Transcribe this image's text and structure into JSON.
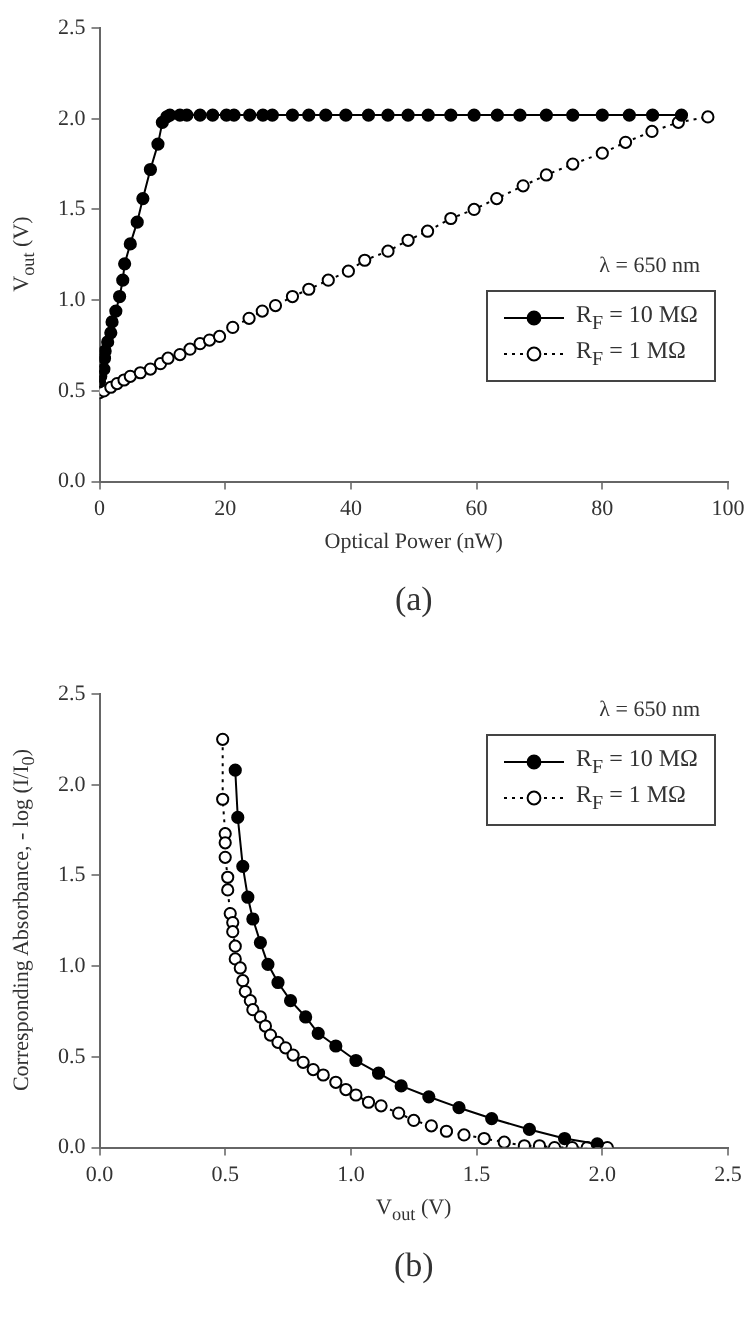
{
  "chart_data": [
    {
      "type": "line",
      "xlabel": "Optical Power (nW)",
      "ylabel": "V$_{out}$ (V)",
      "annotations": [
        "λ = 650 nm",
        "(a)"
      ],
      "marker": "circle",
      "legend": "bottom right",
      "grid": false,
      "xlim": [
        0,
        100
      ],
      "xticks": [
        0,
        20,
        40,
        60,
        80,
        100
      ],
      "ylim": [
        0,
        2.5
      ],
      "yticks": [
        {
          "value": 0,
          "label": "0.0"
        },
        {
          "value": 0.5,
          "label": "0.5"
        },
        {
          "value": 1,
          "label": "1.0"
        },
        {
          "value": 1.5,
          "label": "1.5"
        },
        {
          "value": 2,
          "label": "2.0"
        },
        {
          "value": 2.5,
          "label": "2.5"
        }
      ],
      "series": [
        {
          "name": "R$_{F}$ = 10 MΩ",
          "color": "#000000",
          "line_style": "solid",
          "x": [
            0,
            0.2,
            0.7,
            0.8,
            0.9,
            1.3,
            1.8,
            2.0,
            2.6,
            3.2,
            3.7,
            4.0,
            4.9,
            6.0,
            6.9,
            8.1,
            9.3,
            10.0,
            10.7,
            11.2,
            12.8,
            13.9,
            16,
            18,
            20.2,
            21.4,
            23.9,
            26,
            27.5,
            30.7,
            33.3,
            36,
            39.2,
            42.8,
            45.9,
            49.1,
            52.3,
            55.9,
            59.6,
            63.3,
            66.9,
            71.1,
            75.3,
            80,
            84.3,
            88,
            92.6
          ],
          "values": [
            0.55,
            0.58,
            0.62,
            0.68,
            0.72,
            0.77,
            0.82,
            0.88,
            0.94,
            1.02,
            1.11,
            1.2,
            1.31,
            1.43,
            1.56,
            1.72,
            1.86,
            1.98,
            2.01,
            2.02,
            2.02,
            2.02,
            2.02,
            2.02,
            2.02,
            2.02,
            2.02,
            2.02,
            2.02,
            2.02,
            2.02,
            2.02,
            2.02,
            2.02,
            2.02,
            2.02,
            2.02,
            2.02,
            2.02,
            2.02,
            2.02,
            2.02,
            2.02,
            2.02,
            2.02,
            2.02,
            2.02
          ]
        },
        {
          "name": "R$_{F}$ = 1 MΩ",
          "color": "#000000",
          "line_style": "dotted",
          "x": [
            0,
            0.7,
            1.8,
            2.8,
            3.9,
            4.9,
            6.5,
            8.1,
            9.7,
            10.9,
            12.8,
            14.4,
            16.0,
            17.5,
            19.1,
            21.2,
            23.8,
            25.9,
            28.0,
            30.7,
            33.3,
            36.4,
            39.6,
            42.2,
            45.9,
            49.1,
            52.2,
            55.9,
            59.6,
            63.2,
            67.4,
            71.1,
            75.3,
            80.0,
            83.7,
            87.9,
            92.1,
            96.8
          ],
          "values": [
            0.49,
            0.5,
            0.52,
            0.54,
            0.56,
            0.58,
            0.6,
            0.62,
            0.65,
            0.68,
            0.7,
            0.73,
            0.76,
            0.78,
            0.8,
            0.85,
            0.9,
            0.94,
            0.97,
            1.02,
            1.06,
            1.11,
            1.16,
            1.22,
            1.27,
            1.33,
            1.38,
            1.45,
            1.5,
            1.56,
            1.63,
            1.69,
            1.75,
            1.81,
            1.87,
            1.93,
            1.98,
            2.01
          ]
        }
      ]
    },
    {
      "type": "line",
      "xlabel": "V$_{out}$ (V)",
      "ylabel": "Corresponding Absorbance, - log (I/I$_{0}$)",
      "annotations": [
        "λ = 650 nm",
        "(b)"
      ],
      "marker": "circle",
      "legend": "top right",
      "grid": false,
      "xlim": [
        0,
        2.5
      ],
      "xticks": [
        {
          "value": 0,
          "label": "0.0"
        },
        {
          "value": 0.5,
          "label": "0.5"
        },
        {
          "value": 1,
          "label": "1.0"
        },
        {
          "value": 1.5,
          "label": "1.5"
        },
        {
          "value": 2,
          "label": "2.0"
        },
        {
          "value": 2.5,
          "label": "2.5"
        }
      ],
      "ylim": [
        0,
        2.5
      ],
      "yticks": [
        {
          "value": 0,
          "label": "0.0"
        },
        {
          "value": 0.5,
          "label": "0.5"
        },
        {
          "value": 1,
          "label": "1.0"
        },
        {
          "value": 1.5,
          "label": "1.5"
        },
        {
          "value": 2,
          "label": "2.0"
        },
        {
          "value": 2.5,
          "label": "2.5"
        }
      ],
      "series": [
        {
          "name": "R$_{F}$ = 10 MΩ",
          "color": "#000000",
          "line_style": "solid",
          "x": [
            0.54,
            0.55,
            0.57,
            0.59,
            0.61,
            0.64,
            0.67,
            0.71,
            0.76,
            0.82,
            0.87,
            0.94,
            1.02,
            1.11,
            1.2,
            1.31,
            1.43,
            1.56,
            1.71,
            1.85,
            1.98
          ],
          "values": [
            2.08,
            1.82,
            1.55,
            1.38,
            1.26,
            1.13,
            1.01,
            0.91,
            0.81,
            0.72,
            0.63,
            0.56,
            0.48,
            0.41,
            0.34,
            0.28,
            0.22,
            0.16,
            0.1,
            0.05,
            0.02
          ]
        },
        {
          "name": "R$_{F}$ = 1 MΩ",
          "color": "#000000",
          "line_style": "dotted",
          "x": [
            0.49,
            0.49,
            0.5,
            0.5,
            0.5,
            0.51,
            0.51,
            0.52,
            0.53,
            0.53,
            0.54,
            0.54,
            0.56,
            0.57,
            0.58,
            0.6,
            0.61,
            0.64,
            0.66,
            0.68,
            0.71,
            0.74,
            0.77,
            0.81,
            0.85,
            0.89,
            0.94,
            0.98,
            1.02,
            1.07,
            1.12,
            1.19,
            1.25,
            1.32,
            1.38,
            1.45,
            1.53,
            1.61,
            1.69,
            1.75,
            1.81,
            1.88,
            1.94,
            1.99,
            2.02
          ],
          "values": [
            2.25,
            1.92,
            1.73,
            1.68,
            1.6,
            1.49,
            1.42,
            1.29,
            1.24,
            1.19,
            1.11,
            1.04,
            0.99,
            0.92,
            0.86,
            0.81,
            0.76,
            0.72,
            0.67,
            0.62,
            0.58,
            0.55,
            0.51,
            0.47,
            0.43,
            0.4,
            0.36,
            0.32,
            0.29,
            0.25,
            0.23,
            0.19,
            0.15,
            0.12,
            0.09,
            0.07,
            0.05,
            0.03,
            0.01,
            0.01,
            0,
            0,
            0,
            0,
            0
          ]
        }
      ]
    }
  ]
}
